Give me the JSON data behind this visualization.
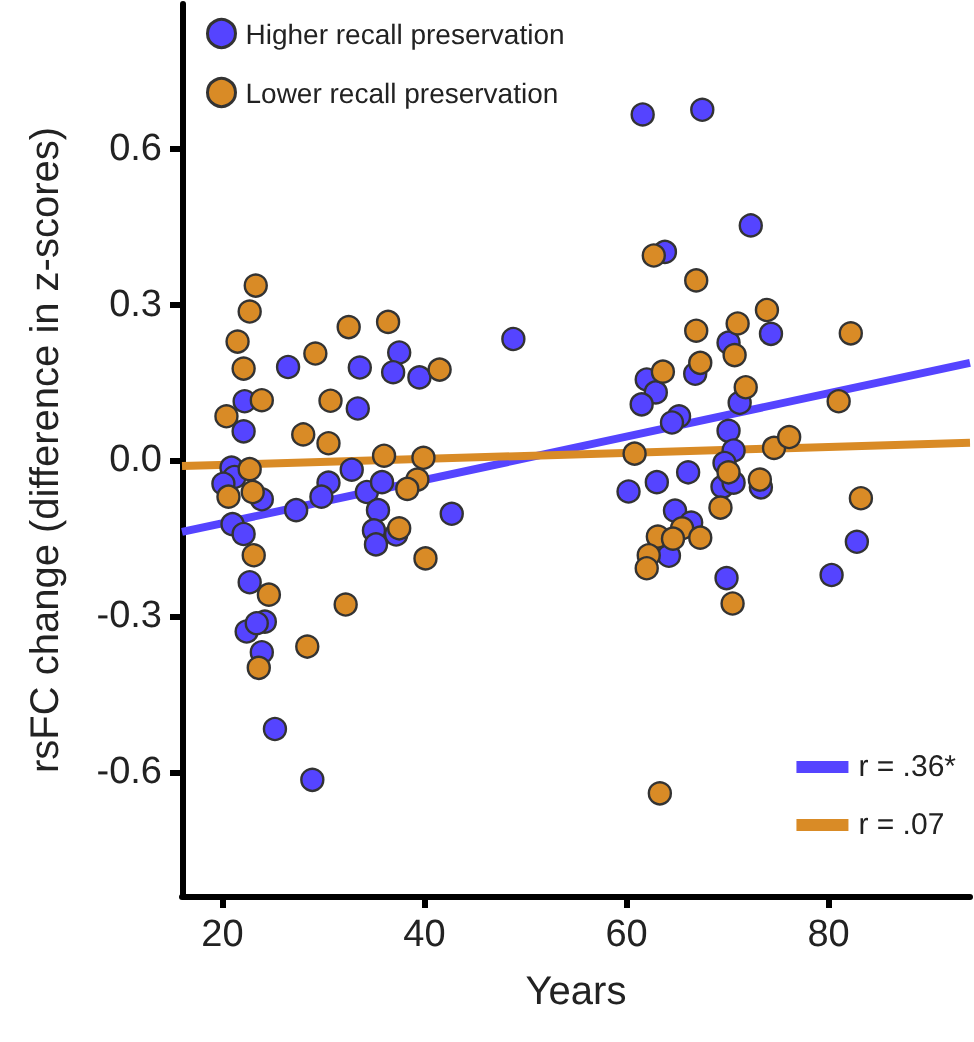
{
  "chart_data": {
    "type": "scatter",
    "xlabel": "Years",
    "ylabel": "rsFC change (difference in z-scores)",
    "xlim": [
      16,
      94
    ],
    "ylim": [
      -0.84,
      0.88
    ],
    "xticks": [
      20,
      40,
      60,
      80
    ],
    "yticks": [
      -0.6,
      -0.3,
      {
        "value": 0,
        "label": "0.0"
      },
      0.3,
      0.6
    ],
    "grid": false,
    "legend": "top left",
    "series": [
      {
        "name": "Higher recall preservation",
        "color": "#5544ff",
        "marker": "circle",
        "x": [
          26.5,
          33.6,
          37.5,
          36.9,
          39.5,
          22.2,
          33.4,
          22.1,
          20.9,
          21.2,
          20.1,
          23.9,
          30.5,
          29.8,
          27.3,
          32.8,
          34.3,
          35.8,
          35.4,
          42.7,
          21.0,
          22.1,
          35.0,
          35.2,
          37.2,
          22.7,
          22.4,
          24.2,
          23.4,
          23.9,
          25.2,
          28.9,
          48.8,
          61.6,
          67.5,
          72.3,
          63.8,
          74.3,
          70.1,
          66.8,
          62.0,
          62.9,
          61.5,
          71.2,
          65.2,
          64.5,
          70.1,
          70.6,
          69.7,
          66.1,
          63.0,
          60.2,
          69.5,
          70.6,
          73.3,
          64.8,
          66.4,
          82.8,
          64.2,
          69.9,
          80.3
        ],
        "values": [
          0.18,
          0.179,
          0.208,
          0.17,
          0.16,
          0.114,
          0.1,
          0.056,
          -0.014,
          -0.032,
          -0.045,
          -0.075,
          -0.043,
          -0.07,
          -0.096,
          -0.018,
          -0.061,
          -0.042,
          -0.096,
          -0.103,
          -0.123,
          -0.142,
          -0.135,
          -0.162,
          -0.143,
          -0.235,
          -0.33,
          -0.311,
          -0.314,
          -0.37,
          -0.518,
          -0.616,
          0.234,
          0.667,
          0.676,
          0.453,
          0.402,
          0.244,
          0.227,
          0.167,
          0.156,
          0.131,
          0.108,
          0.111,
          0.085,
          0.073,
          0.057,
          0.019,
          -0.005,
          -0.023,
          -0.042,
          -0.06,
          -0.051,
          -0.043,
          -0.052,
          -0.097,
          -0.12,
          -0.157,
          -0.184,
          -0.227,
          -0.221
        ]
      },
      {
        "name": "Lower recall preservation",
        "color": "#d98b26",
        "marker": "circle",
        "x": [
          23.3,
          22.7,
          21.5,
          22.1,
          23.9,
          20.4,
          32.5,
          36.4,
          29.2,
          41.5,
          30.7,
          28.0,
          30.5,
          22.7,
          20.6,
          23.0,
          36.0,
          39.9,
          39.3,
          38.3,
          37.5,
          23.1,
          40.1,
          24.6,
          32.2,
          28.4,
          23.6,
          62.7,
          66.9,
          73.9,
          71.0,
          66.9,
          82.2,
          70.7,
          67.3,
          63.6,
          71.8,
          81.0,
          60.8,
          74.6,
          76.1,
          70.1,
          73.2,
          83.2,
          69.3,
          65.5,
          67.3,
          63.1,
          64.6,
          62.2,
          62.0,
          70.5,
          63.3
        ],
        "values": [
          0.337,
          0.287,
          0.229,
          0.177,
          0.116,
          0.085,
          0.257,
          0.267,
          0.206,
          0.175,
          0.115,
          0.05,
          0.033,
          -0.017,
          -0.07,
          -0.061,
          0.009,
          0.005,
          -0.037,
          -0.055,
          -0.131,
          -0.183,
          -0.189,
          -0.259,
          -0.278,
          -0.359,
          -0.4,
          0.395,
          0.347,
          0.29,
          0.264,
          0.25,
          0.245,
          0.203,
          0.188,
          0.171,
          0.141,
          0.114,
          0.013,
          0.024,
          0.045,
          -0.023,
          -0.037,
          -0.073,
          -0.091,
          -0.131,
          -0.149,
          -0.147,
          -0.151,
          -0.183,
          -0.208,
          -0.276,
          -0.642
        ]
      },
      {
        "name": "r = .36*",
        "type": "line",
        "marker": "none",
        "color": "#5544ff",
        "x": [
          16,
          94
        ],
        "values": [
          -0.138,
          0.188
        ]
      },
      {
        "name": "r = .07",
        "type": "line",
        "marker": "none",
        "color": "#d98b26",
        "x": [
          16,
          94
        ],
        "values": [
          -0.011,
          0.034
        ]
      }
    ]
  }
}
